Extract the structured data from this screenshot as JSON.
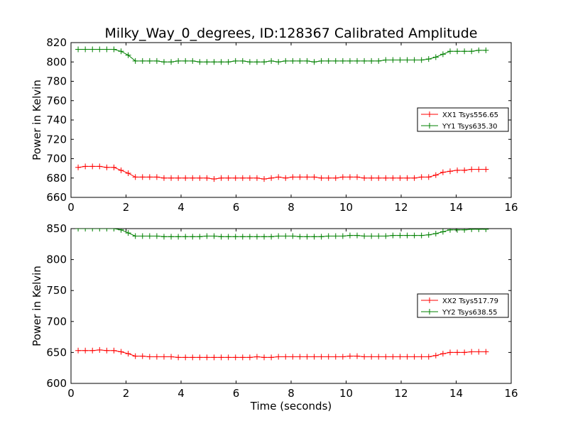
{
  "figure": {
    "title": "Milky_Way_0_degrees, ID:128367 Calibrated Amplitude"
  },
  "chart_data": [
    {
      "type": "line",
      "title": "Milky_Way_0_degrees, ID:128367 Calibrated Amplitude",
      "xlabel": "",
      "ylabel": "Power in Kelvin",
      "xlim": [
        0,
        16
      ],
      "ylim": [
        660,
        820
      ],
      "xticks": [
        "0",
        "2",
        "4",
        "6",
        "8",
        "10",
        "12",
        "14",
        "16"
      ],
      "yticks": [
        "660",
        "680",
        "700",
        "720",
        "740",
        "760",
        "780",
        "800",
        "820"
      ],
      "grid": false,
      "legend_position": "center-right",
      "x": [
        0.26,
        0.52,
        0.78,
        1.04,
        1.3,
        1.56,
        1.82,
        2.08,
        2.34,
        2.6,
        2.86,
        3.12,
        3.38,
        3.64,
        3.9,
        4.16,
        4.42,
        4.68,
        4.94,
        5.2,
        5.46,
        5.72,
        5.98,
        6.24,
        6.5,
        6.76,
        7.02,
        7.28,
        7.54,
        7.8,
        8.06,
        8.32,
        8.58,
        8.84,
        9.1,
        9.36,
        9.62,
        9.88,
        10.14,
        10.4,
        10.66,
        10.92,
        11.18,
        11.44,
        11.7,
        11.96,
        12.22,
        12.48,
        12.74,
        13.0,
        13.26,
        13.52,
        13.78,
        14.04,
        14.3,
        14.56,
        14.82,
        15.08
      ],
      "series": [
        {
          "name": "XX1 Tsys556.65",
          "color": "#ff0000",
          "values": [
            691,
            692,
            692,
            692,
            691,
            691,
            688,
            685,
            681,
            681,
            681,
            681,
            680,
            680,
            680,
            680,
            680,
            680,
            680,
            679,
            680,
            680,
            680,
            680,
            680,
            680,
            679,
            680,
            681,
            680,
            681,
            681,
            681,
            681,
            680,
            680,
            680,
            681,
            681,
            681,
            680,
            680,
            680,
            680,
            680,
            680,
            680,
            680,
            681,
            681,
            683,
            686,
            687,
            688,
            688,
            689,
            689,
            689
          ]
        },
        {
          "name": "YY1 Tsys635.30",
          "color": "#008000",
          "values": [
            813,
            813,
            813,
            813,
            813,
            813,
            811,
            807,
            801,
            801,
            801,
            801,
            800,
            800,
            801,
            801,
            801,
            800,
            800,
            800,
            800,
            800,
            801,
            801,
            800,
            800,
            800,
            801,
            800,
            801,
            801,
            801,
            801,
            800,
            801,
            801,
            801,
            801,
            801,
            801,
            801,
            801,
            801,
            802,
            802,
            802,
            802,
            802,
            802,
            803,
            805,
            808,
            811,
            811,
            811,
            811,
            812,
            812
          ]
        }
      ]
    },
    {
      "type": "line",
      "title": "",
      "xlabel": "Time (seconds)",
      "ylabel": "Power in Kelvin",
      "xlim": [
        0,
        16
      ],
      "ylim": [
        600,
        850
      ],
      "xticks": [
        "0",
        "2",
        "4",
        "6",
        "8",
        "10",
        "12",
        "14",
        "16"
      ],
      "yticks": [
        "600",
        "650",
        "700",
        "750",
        "800",
        "850"
      ],
      "grid": false,
      "legend_position": "center-right",
      "x": [
        0.26,
        0.52,
        0.78,
        1.04,
        1.3,
        1.56,
        1.82,
        2.08,
        2.34,
        2.6,
        2.86,
        3.12,
        3.38,
        3.64,
        3.9,
        4.16,
        4.42,
        4.68,
        4.94,
        5.2,
        5.46,
        5.72,
        5.98,
        6.24,
        6.5,
        6.76,
        7.02,
        7.28,
        7.54,
        7.8,
        8.06,
        8.32,
        8.58,
        8.84,
        9.1,
        9.36,
        9.62,
        9.88,
        10.14,
        10.4,
        10.66,
        10.92,
        11.18,
        11.44,
        11.7,
        11.96,
        12.22,
        12.48,
        12.74,
        13.0,
        13.26,
        13.52,
        13.78,
        14.04,
        14.3,
        14.56,
        14.82,
        15.08
      ],
      "series": [
        {
          "name": "XX2 Tsys517.79",
          "color": "#ff0000",
          "values": [
            653,
            653,
            653,
            654,
            653,
            653,
            651,
            648,
            644,
            644,
            643,
            643,
            643,
            643,
            642,
            642,
            642,
            642,
            642,
            642,
            642,
            642,
            642,
            642,
            642,
            643,
            642,
            642,
            643,
            643,
            643,
            643,
            643,
            643,
            643,
            643,
            643,
            643,
            644,
            644,
            643,
            643,
            643,
            643,
            643,
            643,
            643,
            643,
            643,
            643,
            645,
            648,
            650,
            650,
            650,
            651,
            651,
            651
          ]
        },
        {
          "name": "YY2 Tsys638.55",
          "color": "#008000",
          "values": [
            850,
            850,
            850,
            850,
            850,
            850,
            848,
            843,
            838,
            838,
            838,
            838,
            837,
            837,
            837,
            837,
            837,
            837,
            838,
            838,
            837,
            837,
            837,
            837,
            837,
            837,
            837,
            837,
            838,
            838,
            838,
            837,
            837,
            837,
            837,
            838,
            838,
            838,
            839,
            839,
            838,
            838,
            838,
            838,
            839,
            839,
            839,
            839,
            839,
            840,
            842,
            845,
            848,
            848,
            848,
            849,
            849,
            849
          ]
        }
      ]
    }
  ]
}
